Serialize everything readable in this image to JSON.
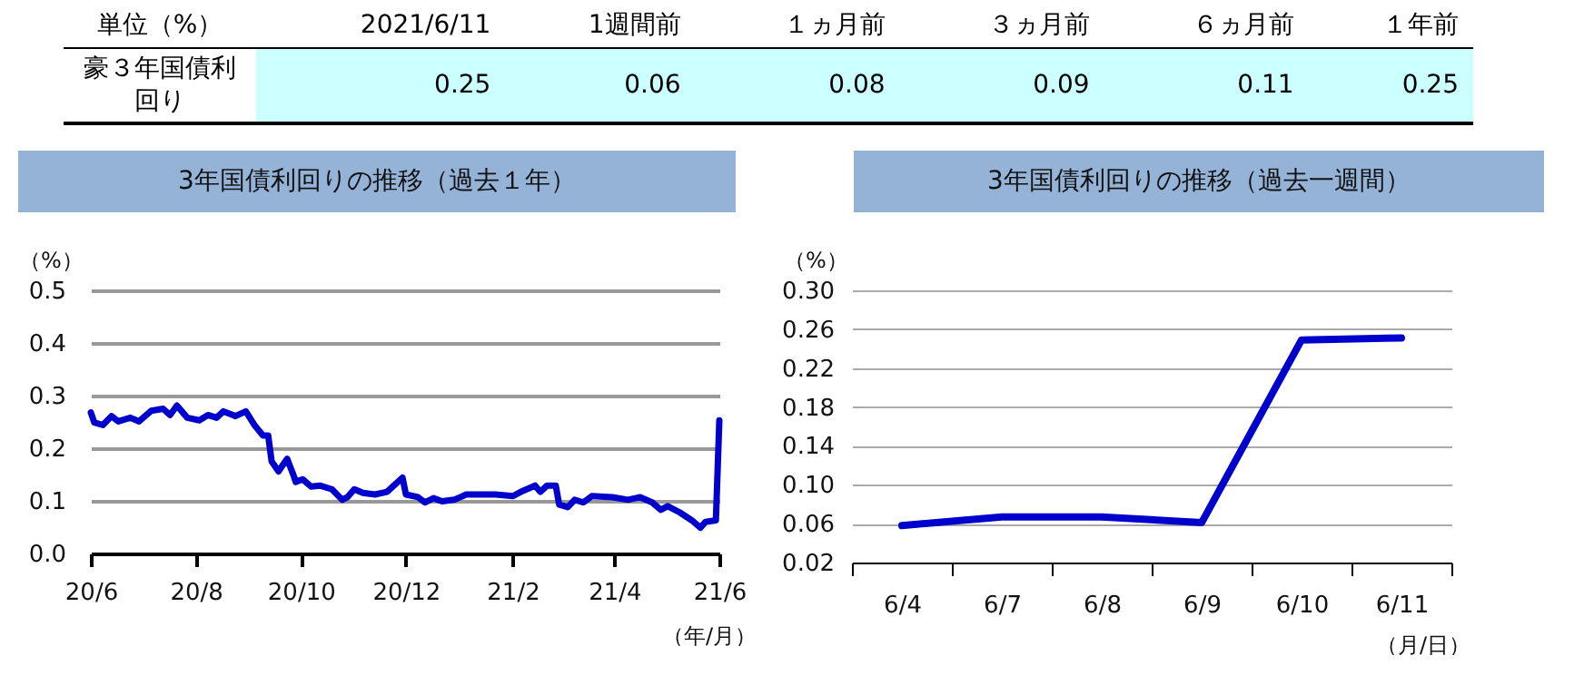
{
  "chart_data": [
    {
      "type": "other",
      "annotations": [
        "単位（%）"
      ],
      "ylabel": "豪３年国債利回り",
      "categories": [
        "2021/6/11",
        "1週間前",
        "１ヵ月前",
        "３ヵ月前",
        "６ヵ月前",
        "１年前"
      ],
      "values": [
        0.25,
        0.06,
        0.08,
        0.09,
        0.11,
        0.25
      ],
      "data_labels": true
    },
    {
      "type": "line",
      "title": "3年国債利回りの推移（過去１年）",
      "ylabel": "（%）",
      "xlabel": "（年/月）",
      "x": [
        "2020-06-11",
        "2020-06-13",
        "2020-06-18",
        "2020-06-23",
        "2020-06-27",
        "2020-07-04",
        "2020-07-09",
        "2020-07-16",
        "2020-07-23",
        "2020-07-27",
        "2020-07-31",
        "2020-08-06",
        "2020-08-13",
        "2020-08-18",
        "2020-08-23",
        "2020-08-27",
        "2020-09-03",
        "2020-09-09",
        "2020-09-14",
        "2020-09-19",
        "2020-09-22",
        "2020-09-24",
        "2020-09-28",
        "2020-10-03",
        "2020-10-07",
        "2020-10-08",
        "2020-10-12",
        "2020-10-17",
        "2020-10-22",
        "2020-10-29",
        "2020-11-04",
        "2020-11-07",
        "2020-11-11",
        "2020-11-16",
        "2020-11-23",
        "2020-11-30",
        "2020-12-04",
        "2020-12-09",
        "2020-12-11",
        "2020-12-18",
        "2020-12-22",
        "2020-12-27",
        "2021-01-01",
        "2021-01-08",
        "2021-01-15",
        "2021-01-22",
        "2021-02-01",
        "2021-02-11",
        "2021-02-17",
        "2021-02-24",
        "2021-02-27",
        "2021-03-03",
        "2021-03-08",
        "2021-03-10",
        "2021-03-15",
        "2021-03-19",
        "2021-03-24",
        "2021-03-29",
        "2021-04-10",
        "2021-04-19",
        "2021-04-26",
        "2021-05-03",
        "2021-05-08",
        "2021-05-12",
        "2021-05-19",
        "2021-05-26",
        "2021-05-31",
        "2021-06-03",
        "2021-06-09",
        "2021-06-11"
      ],
      "series": [
        {
          "color": "#0000cc",
          "values": [
            0.268,
            0.249,
            0.244,
            0.261,
            0.251,
            0.258,
            0.251,
            0.271,
            0.275,
            0.263,
            0.281,
            0.258,
            0.253,
            0.263,
            0.258,
            0.27,
            0.261,
            0.27,
            0.244,
            0.224,
            0.224,
            0.175,
            0.156,
            0.18,
            0.146,
            0.136,
            0.141,
            0.127,
            0.129,
            0.122,
            0.102,
            0.107,
            0.122,
            0.115,
            0.112,
            0.117,
            0.129,
            0.144,
            0.112,
            0.107,
            0.097,
            0.105,
            0.099,
            0.102,
            0.112,
            0.112,
            0.112,
            0.109,
            0.119,
            0.129,
            0.117,
            0.129,
            0.129,
            0.093,
            0.088,
            0.102,
            0.097,
            0.109,
            0.107,
            0.102,
            0.107,
            0.097,
            0.083,
            0.09,
            0.078,
            0.063,
            0.049,
            0.06,
            0.063,
            0.253
          ]
        }
      ],
      "xlim": [
        "2020-06-11",
        "2021-06-11"
      ],
      "xticks": [
        {
          "value": "2020-06-11",
          "label": "20/6"
        },
        {
          "value": "2020-08-11",
          "label": "20/8"
        },
        {
          "value": "2020-10-11",
          "label": "20/10"
        },
        {
          "value": "2020-12-11",
          "label": "20/12"
        },
        {
          "value": "2021-02-11",
          "label": "21/2"
        },
        {
          "value": "2021-04-11",
          "label": "21/4"
        },
        {
          "value": "2021-06-11",
          "label": "21/6"
        }
      ],
      "ylim": [
        0,
        0.5
      ],
      "yticks": [
        {
          "value": 0,
          "label": "0.0"
        },
        0.1,
        0.2,
        0.3,
        0.4,
        0.5
      ],
      "grid": "y"
    },
    {
      "type": "line",
      "title": "3年国債利回りの推移（過去一週間）",
      "ylabel": "（%）",
      "xlabel": "（月/日）",
      "categories": [
        "6/4",
        "6/7",
        "6/8",
        "6/9",
        "6/10",
        "6/11"
      ],
      "series": [
        {
          "color": "#0000cc",
          "values": [
            0.058,
            0.067,
            0.067,
            0.061,
            0.249,
            0.251
          ]
        }
      ],
      "ylim": [
        0.02,
        0.3
      ],
      "yticks": [
        0.02,
        0.06,
        {
          "value": 0.1,
          "label": "0.10"
        },
        0.14,
        0.18,
        0.22,
        0.26,
        {
          "value": 0.3,
          "label": "0.30"
        }
      ],
      "grid": "y"
    }
  ]
}
